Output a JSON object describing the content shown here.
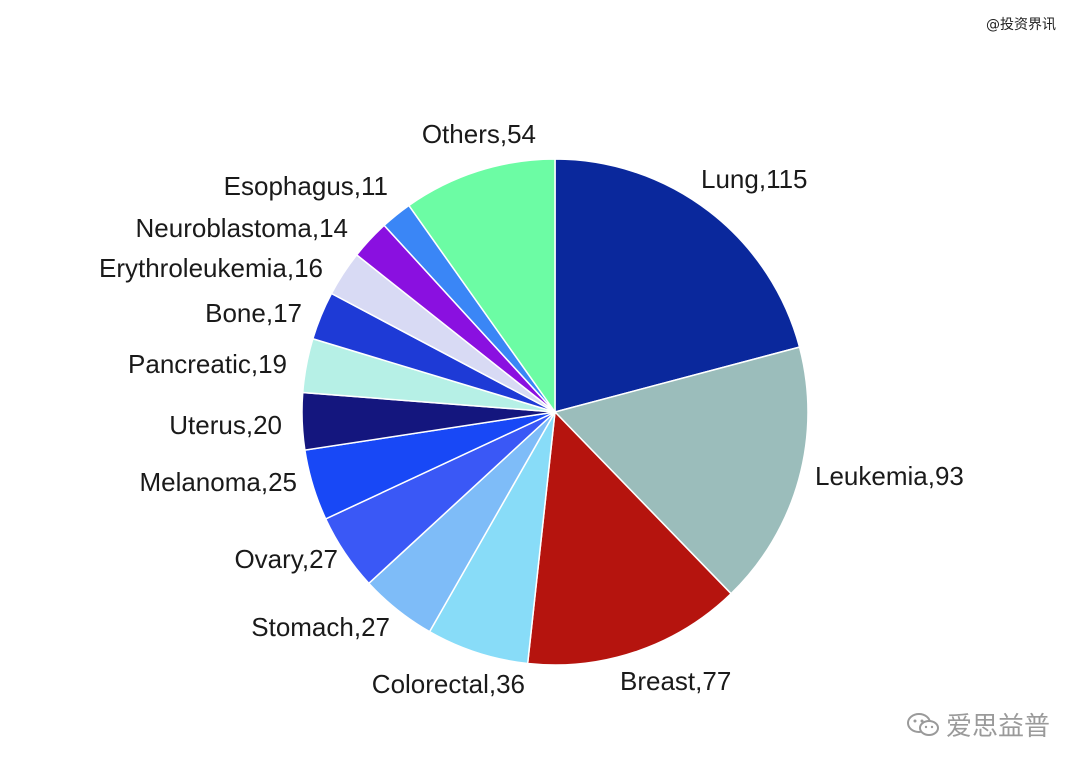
{
  "watermark_top": "@投资界讯",
  "watermark_bottom": "爱思益普",
  "chart_data": {
    "type": "pie",
    "start_angle_deg": 0,
    "direction": "clockwise",
    "slices": [
      {
        "label": "Lung,115",
        "category": "Lung",
        "value": 115,
        "color": "#0a289c"
      },
      {
        "label": "Leukemia,93",
        "category": "Leukemia",
        "value": 93,
        "color": "#9bbdbb"
      },
      {
        "label": "Breast,77",
        "category": "Breast",
        "value": 77,
        "color": "#b5140e"
      },
      {
        "label": "Colorectal,36",
        "category": "Colorectal",
        "value": 36,
        "color": "#88dcf8"
      },
      {
        "label": "Stomach,27",
        "category": "Stomach",
        "value": 27,
        "color": "#7ebcf8"
      },
      {
        "label": "Ovary,27",
        "category": "Ovary",
        "value": 27,
        "color": "#3a58f6"
      },
      {
        "label": "Melanoma,25",
        "category": "Melanoma",
        "value": 25,
        "color": "#1848f6"
      },
      {
        "label": "Uterus,20",
        "category": "Uterus",
        "value": 20,
        "color": "#14167e"
      },
      {
        "label": "Pancreatic,19",
        "category": "Pancreatic",
        "value": 19,
        "color": "#b6f0e6"
      },
      {
        "label": "Bone,17",
        "category": "Bone",
        "value": 17,
        "color": "#1e3ad6"
      },
      {
        "label": "Erythroleukemia,16",
        "category": "Erythroleukemia",
        "value": 16,
        "color": "#d8daf4"
      },
      {
        "label": "Neuroblastoma,14",
        "category": "Neuroblastoma",
        "value": 14,
        "color": "#8a10e0"
      },
      {
        "label": "Esophagus,11",
        "category": "Esophagus",
        "value": 11,
        "color": "#3a86f6"
      },
      {
        "label": "Others,54",
        "category": "Others",
        "value": 54,
        "color": "#6cfca4"
      }
    ]
  }
}
